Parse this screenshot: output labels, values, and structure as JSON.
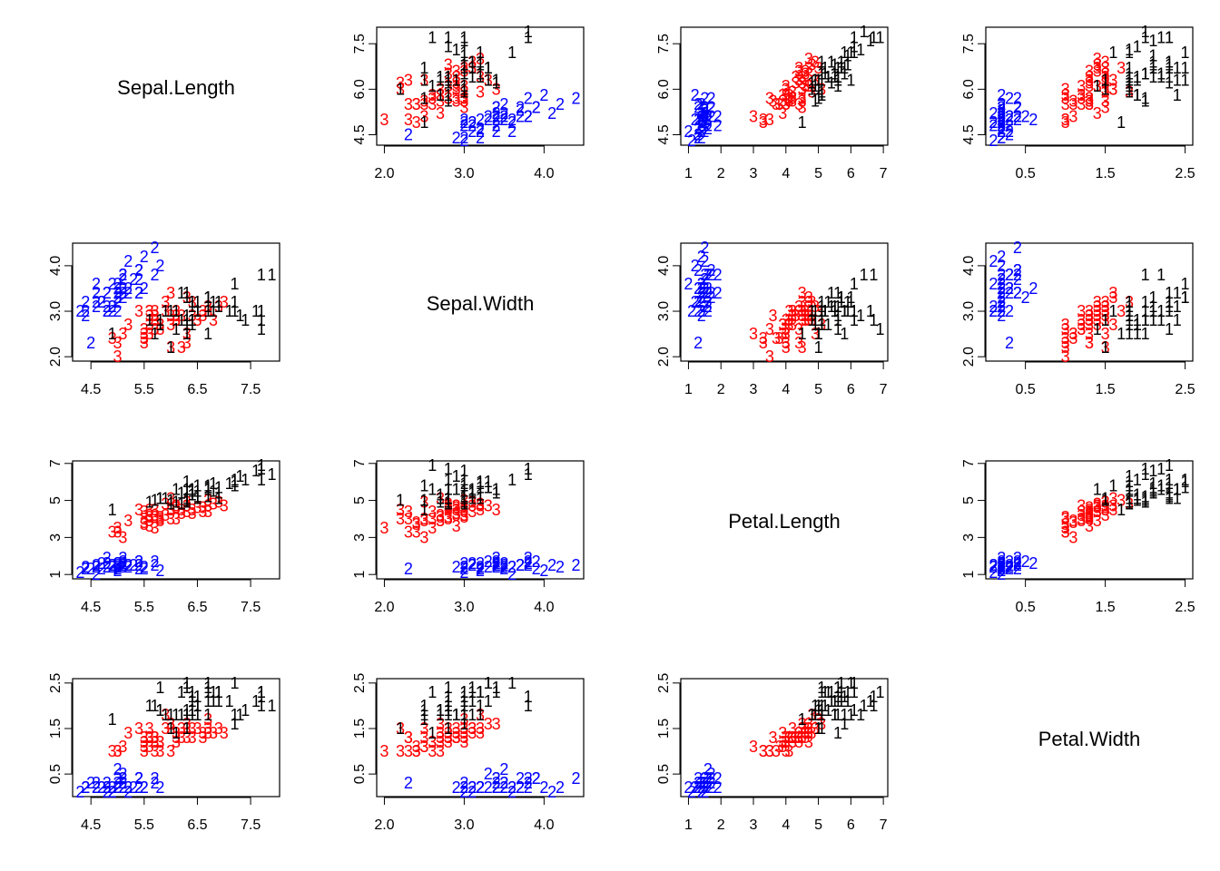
{
  "variables": [
    "Sepal.Length",
    "Sepal.Width",
    "Petal.Length",
    "Petal.Width"
  ],
  "chart_data": {
    "type": "scatter",
    "kind": "scatterplot-matrix",
    "title": "",
    "variables": [
      "Sepal.Length",
      "Sepal.Width",
      "Petal.Length",
      "Petal.Width"
    ],
    "point_labels": [
      "1",
      "2",
      "3"
    ],
    "groups": [
      {
        "label": "1",
        "color": "#000000"
      },
      {
        "label": "2",
        "color": "#0000ff"
      },
      {
        "label": "3",
        "color": "#ff0000"
      }
    ],
    "axes": {
      "Sepal.Length": {
        "range": [
          4.3,
          7.9
        ],
        "ticks": [
          "4.5",
          "5.5",
          "6.5",
          "7.5"
        ],
        "row_ticks": [
          "4.5",
          "6.0",
          "7.5"
        ]
      },
      "Sepal.Width": {
        "range": [
          2.0,
          4.4
        ],
        "ticks": [
          "2.0",
          "3.0",
          "4.0"
        ],
        "row_ticks": [
          "2.0",
          "3.0",
          "4.0"
        ]
      },
      "Petal.Length": {
        "range": [
          1.0,
          6.9
        ],
        "ticks": [
          "1",
          "2",
          "3",
          "4",
          "5",
          "6",
          "7"
        ],
        "row_ticks": [
          "1",
          "3",
          "5",
          "7"
        ]
      },
      "Petal.Width": {
        "range": [
          0.1,
          2.5
        ],
        "ticks": [
          "0.5",
          "1.5",
          "2.5"
        ],
        "row_ticks": [
          "0.5",
          "1.5",
          "2.5"
        ]
      }
    },
    "grid": false,
    "legend": "none",
    "points": [
      {
        "g": 2,
        "v": [
          5.1,
          3.5,
          1.4,
          0.2
        ]
      },
      {
        "g": 2,
        "v": [
          4.9,
          3.0,
          1.4,
          0.2
        ]
      },
      {
        "g": 2,
        "v": [
          4.7,
          3.2,
          1.3,
          0.2
        ]
      },
      {
        "g": 2,
        "v": [
          4.6,
          3.1,
          1.5,
          0.2
        ]
      },
      {
        "g": 2,
        "v": [
          5.0,
          3.6,
          1.4,
          0.2
        ]
      },
      {
        "g": 2,
        "v": [
          5.4,
          3.9,
          1.7,
          0.4
        ]
      },
      {
        "g": 2,
        "v": [
          4.6,
          3.4,
          1.4,
          0.3
        ]
      },
      {
        "g": 2,
        "v": [
          5.0,
          3.4,
          1.5,
          0.2
        ]
      },
      {
        "g": 2,
        "v": [
          4.4,
          2.9,
          1.4,
          0.2
        ]
      },
      {
        "g": 2,
        "v": [
          4.9,
          3.1,
          1.5,
          0.1
        ]
      },
      {
        "g": 2,
        "v": [
          5.4,
          3.7,
          1.5,
          0.2
        ]
      },
      {
        "g": 2,
        "v": [
          4.8,
          3.4,
          1.6,
          0.2
        ]
      },
      {
        "g": 2,
        "v": [
          4.8,
          3.0,
          1.4,
          0.1
        ]
      },
      {
        "g": 2,
        "v": [
          4.3,
          3.0,
          1.1,
          0.1
        ]
      },
      {
        "g": 2,
        "v": [
          5.8,
          4.0,
          1.2,
          0.2
        ]
      },
      {
        "g": 2,
        "v": [
          5.7,
          4.4,
          1.5,
          0.4
        ]
      },
      {
        "g": 2,
        "v": [
          5.4,
          3.9,
          1.3,
          0.4
        ]
      },
      {
        "g": 2,
        "v": [
          5.1,
          3.5,
          1.4,
          0.3
        ]
      },
      {
        "g": 2,
        "v": [
          5.7,
          3.8,
          1.7,
          0.3
        ]
      },
      {
        "g": 2,
        "v": [
          5.1,
          3.8,
          1.5,
          0.3
        ]
      },
      {
        "g": 2,
        "v": [
          5.4,
          3.4,
          1.7,
          0.2
        ]
      },
      {
        "g": 2,
        "v": [
          5.1,
          3.7,
          1.5,
          0.4
        ]
      },
      {
        "g": 2,
        "v": [
          4.6,
          3.6,
          1.0,
          0.2
        ]
      },
      {
        "g": 2,
        "v": [
          5.1,
          3.3,
          1.7,
          0.5
        ]
      },
      {
        "g": 2,
        "v": [
          4.8,
          3.4,
          1.9,
          0.2
        ]
      },
      {
        "g": 2,
        "v": [
          5.0,
          3.0,
          1.6,
          0.2
        ]
      },
      {
        "g": 2,
        "v": [
          5.0,
          3.4,
          1.6,
          0.4
        ]
      },
      {
        "g": 2,
        "v": [
          5.2,
          3.5,
          1.5,
          0.2
        ]
      },
      {
        "g": 2,
        "v": [
          5.2,
          3.4,
          1.4,
          0.2
        ]
      },
      {
        "g": 2,
        "v": [
          4.7,
          3.2,
          1.6,
          0.2
        ]
      },
      {
        "g": 2,
        "v": [
          4.8,
          3.1,
          1.6,
          0.2
        ]
      },
      {
        "g": 2,
        "v": [
          5.4,
          3.4,
          1.5,
          0.4
        ]
      },
      {
        "g": 2,
        "v": [
          5.2,
          4.1,
          1.5,
          0.1
        ]
      },
      {
        "g": 2,
        "v": [
          5.5,
          4.2,
          1.4,
          0.2
        ]
      },
      {
        "g": 2,
        "v": [
          4.9,
          3.1,
          1.5,
          0.2
        ]
      },
      {
        "g": 2,
        "v": [
          5.0,
          3.2,
          1.2,
          0.2
        ]
      },
      {
        "g": 2,
        "v": [
          5.5,
          3.5,
          1.3,
          0.2
        ]
      },
      {
        "g": 2,
        "v": [
          4.9,
          3.6,
          1.4,
          0.1
        ]
      },
      {
        "g": 2,
        "v": [
          4.4,
          3.0,
          1.3,
          0.2
        ]
      },
      {
        "g": 2,
        "v": [
          5.1,
          3.4,
          1.5,
          0.2
        ]
      },
      {
        "g": 2,
        "v": [
          5.0,
          3.5,
          1.3,
          0.3
        ]
      },
      {
        "g": 2,
        "v": [
          4.5,
          2.3,
          1.3,
          0.3
        ]
      },
      {
        "g": 2,
        "v": [
          4.4,
          3.2,
          1.3,
          0.2
        ]
      },
      {
        "g": 2,
        "v": [
          5.0,
          3.5,
          1.6,
          0.6
        ]
      },
      {
        "g": 2,
        "v": [
          5.1,
          3.8,
          1.9,
          0.4
        ]
      },
      {
        "g": 2,
        "v": [
          4.8,
          3.0,
          1.4,
          0.3
        ]
      },
      {
        "g": 2,
        "v": [
          5.1,
          3.8,
          1.6,
          0.2
        ]
      },
      {
        "g": 2,
        "v": [
          4.6,
          3.2,
          1.4,
          0.2
        ]
      },
      {
        "g": 2,
        "v": [
          5.3,
          3.7,
          1.5,
          0.2
        ]
      },
      {
        "g": 2,
        "v": [
          5.0,
          3.3,
          1.4,
          0.2
        ]
      },
      {
        "g": 3,
        "v": [
          7.0,
          3.2,
          4.7,
          1.4
        ]
      },
      {
        "g": 3,
        "v": [
          6.4,
          3.2,
          4.5,
          1.5
        ]
      },
      {
        "g": 3,
        "v": [
          6.9,
          3.1,
          4.9,
          1.5
        ]
      },
      {
        "g": 3,
        "v": [
          5.5,
          2.3,
          4.0,
          1.3
        ]
      },
      {
        "g": 3,
        "v": [
          6.5,
          2.8,
          4.6,
          1.5
        ]
      },
      {
        "g": 3,
        "v": [
          5.7,
          2.8,
          4.5,
          1.3
        ]
      },
      {
        "g": 3,
        "v": [
          6.3,
          3.3,
          4.7,
          1.6
        ]
      },
      {
        "g": 3,
        "v": [
          4.9,
          2.4,
          3.3,
          1.0
        ]
      },
      {
        "g": 3,
        "v": [
          6.6,
          2.9,
          4.6,
          1.3
        ]
      },
      {
        "g": 3,
        "v": [
          5.2,
          2.7,
          3.9,
          1.4
        ]
      },
      {
        "g": 3,
        "v": [
          5.0,
          2.0,
          3.5,
          1.0
        ]
      },
      {
        "g": 3,
        "v": [
          5.9,
          3.0,
          4.2,
          1.5
        ]
      },
      {
        "g": 3,
        "v": [
          6.0,
          2.2,
          4.0,
          1.0
        ]
      },
      {
        "g": 3,
        "v": [
          6.1,
          2.9,
          4.7,
          1.4
        ]
      },
      {
        "g": 3,
        "v": [
          5.6,
          2.9,
          3.6,
          1.3
        ]
      },
      {
        "g": 3,
        "v": [
          6.7,
          3.1,
          4.4,
          1.4
        ]
      },
      {
        "g": 3,
        "v": [
          5.6,
          3.0,
          4.5,
          1.5
        ]
      },
      {
        "g": 3,
        "v": [
          5.8,
          2.7,
          4.1,
          1.0
        ]
      },
      {
        "g": 3,
        "v": [
          6.2,
          2.2,
          4.5,
          1.5
        ]
      },
      {
        "g": 3,
        "v": [
          5.6,
          2.5,
          3.9,
          1.1
        ]
      },
      {
        "g": 3,
        "v": [
          5.9,
          3.2,
          4.8,
          1.8
        ]
      },
      {
        "g": 3,
        "v": [
          6.1,
          2.8,
          4.0,
          1.3
        ]
      },
      {
        "g": 3,
        "v": [
          6.3,
          2.5,
          4.9,
          1.5
        ]
      },
      {
        "g": 3,
        "v": [
          6.1,
          2.8,
          4.7,
          1.2
        ]
      },
      {
        "g": 3,
        "v": [
          6.4,
          2.9,
          4.3,
          1.3
        ]
      },
      {
        "g": 3,
        "v": [
          6.6,
          3.0,
          4.4,
          1.4
        ]
      },
      {
        "g": 3,
        "v": [
          6.8,
          2.8,
          4.8,
          1.4
        ]
      },
      {
        "g": 3,
        "v": [
          6.7,
          3.0,
          5.0,
          1.7
        ]
      },
      {
        "g": 3,
        "v": [
          6.0,
          2.9,
          4.5,
          1.5
        ]
      },
      {
        "g": 3,
        "v": [
          5.7,
          2.6,
          3.5,
          1.0
        ]
      },
      {
        "g": 3,
        "v": [
          5.5,
          2.4,
          3.8,
          1.1
        ]
      },
      {
        "g": 3,
        "v": [
          5.5,
          2.4,
          3.7,
          1.0
        ]
      },
      {
        "g": 3,
        "v": [
          5.8,
          2.7,
          3.9,
          1.2
        ]
      },
      {
        "g": 3,
        "v": [
          6.0,
          2.7,
          5.1,
          1.6
        ]
      },
      {
        "g": 3,
        "v": [
          5.4,
          3.0,
          4.5,
          1.5
        ]
      },
      {
        "g": 3,
        "v": [
          6.0,
          3.4,
          4.5,
          1.6
        ]
      },
      {
        "g": 3,
        "v": [
          6.7,
          3.1,
          4.7,
          1.5
        ]
      },
      {
        "g": 3,
        "v": [
          6.3,
          2.3,
          4.4,
          1.3
        ]
      },
      {
        "g": 3,
        "v": [
          5.6,
          3.0,
          4.1,
          1.3
        ]
      },
      {
        "g": 3,
        "v": [
          5.5,
          2.5,
          4.0,
          1.3
        ]
      },
      {
        "g": 3,
        "v": [
          5.5,
          2.6,
          4.4,
          1.2
        ]
      },
      {
        "g": 3,
        "v": [
          6.1,
          3.0,
          4.6,
          1.4
        ]
      },
      {
        "g": 3,
        "v": [
          5.8,
          2.6,
          4.0,
          1.2
        ]
      },
      {
        "g": 3,
        "v": [
          5.0,
          2.3,
          3.3,
          1.0
        ]
      },
      {
        "g": 3,
        "v": [
          5.6,
          2.7,
          4.2,
          1.3
        ]
      },
      {
        "g": 3,
        "v": [
          5.7,
          3.0,
          4.2,
          1.2
        ]
      },
      {
        "g": 3,
        "v": [
          5.7,
          2.9,
          4.2,
          1.3
        ]
      },
      {
        "g": 3,
        "v": [
          6.2,
          2.9,
          4.3,
          1.3
        ]
      },
      {
        "g": 3,
        "v": [
          5.1,
          2.5,
          3.0,
          1.1
        ]
      },
      {
        "g": 3,
        "v": [
          5.7,
          2.8,
          4.1,
          1.3
        ]
      },
      {
        "g": 1,
        "v": [
          6.3,
          3.3,
          6.0,
          2.5
        ]
      },
      {
        "g": 1,
        "v": [
          5.8,
          2.7,
          5.1,
          1.9
        ]
      },
      {
        "g": 1,
        "v": [
          7.1,
          3.0,
          5.9,
          2.1
        ]
      },
      {
        "g": 1,
        "v": [
          6.3,
          2.9,
          5.6,
          1.8
        ]
      },
      {
        "g": 1,
        "v": [
          6.5,
          3.0,
          5.8,
          2.2
        ]
      },
      {
        "g": 1,
        "v": [
          7.6,
          3.0,
          6.6,
          2.1
        ]
      },
      {
        "g": 1,
        "v": [
          4.9,
          2.5,
          4.5,
          1.7
        ]
      },
      {
        "g": 1,
        "v": [
          7.3,
          2.9,
          6.3,
          1.8
        ]
      },
      {
        "g": 1,
        "v": [
          6.7,
          2.5,
          5.8,
          1.8
        ]
      },
      {
        "g": 1,
        "v": [
          7.2,
          3.6,
          6.1,
          2.5
        ]
      },
      {
        "g": 1,
        "v": [
          6.5,
          3.2,
          5.1,
          2.0
        ]
      },
      {
        "g": 1,
        "v": [
          6.4,
          2.7,
          5.3,
          1.9
        ]
      },
      {
        "g": 1,
        "v": [
          6.8,
          3.0,
          5.5,
          2.1
        ]
      },
      {
        "g": 1,
        "v": [
          5.7,
          2.5,
          5.0,
          2.0
        ]
      },
      {
        "g": 1,
        "v": [
          5.8,
          2.8,
          5.1,
          2.4
        ]
      },
      {
        "g": 1,
        "v": [
          6.4,
          3.2,
          5.3,
          2.3
        ]
      },
      {
        "g": 1,
        "v": [
          6.5,
          3.0,
          5.5,
          1.8
        ]
      },
      {
        "g": 1,
        "v": [
          7.7,
          3.8,
          6.7,
          2.2
        ]
      },
      {
        "g": 1,
        "v": [
          7.7,
          2.6,
          6.9,
          2.3
        ]
      },
      {
        "g": 1,
        "v": [
          6.0,
          2.2,
          5.0,
          1.5
        ]
      },
      {
        "g": 1,
        "v": [
          6.9,
          3.2,
          5.7,
          2.3
        ]
      },
      {
        "g": 1,
        "v": [
          5.6,
          2.8,
          4.9,
          2.0
        ]
      },
      {
        "g": 1,
        "v": [
          7.7,
          2.8,
          6.7,
          2.0
        ]
      },
      {
        "g": 1,
        "v": [
          6.3,
          2.7,
          4.9,
          1.8
        ]
      },
      {
        "g": 1,
        "v": [
          6.7,
          3.3,
          5.7,
          2.1
        ]
      },
      {
        "g": 1,
        "v": [
          7.2,
          3.2,
          6.0,
          1.8
        ]
      },
      {
        "g": 1,
        "v": [
          6.2,
          2.8,
          4.8,
          1.8
        ]
      },
      {
        "g": 1,
        "v": [
          6.1,
          3.0,
          4.9,
          1.8
        ]
      },
      {
        "g": 1,
        "v": [
          6.4,
          2.8,
          5.6,
          2.1
        ]
      },
      {
        "g": 1,
        "v": [
          7.2,
          3.0,
          5.8,
          1.6
        ]
      },
      {
        "g": 1,
        "v": [
          7.4,
          2.8,
          6.1,
          1.9
        ]
      },
      {
        "g": 1,
        "v": [
          7.9,
          3.8,
          6.4,
          2.0
        ]
      },
      {
        "g": 1,
        "v": [
          6.4,
          2.8,
          5.6,
          2.2
        ]
      },
      {
        "g": 1,
        "v": [
          6.3,
          2.8,
          5.1,
          1.5
        ]
      },
      {
        "g": 1,
        "v": [
          6.1,
          2.6,
          5.6,
          1.4
        ]
      },
      {
        "g": 1,
        "v": [
          7.7,
          3.0,
          6.1,
          2.3
        ]
      },
      {
        "g": 1,
        "v": [
          6.3,
          3.4,
          5.6,
          2.4
        ]
      },
      {
        "g": 1,
        "v": [
          6.4,
          3.1,
          5.5,
          1.8
        ]
      },
      {
        "g": 1,
        "v": [
          6.0,
          3.0,
          4.8,
          1.8
        ]
      },
      {
        "g": 1,
        "v": [
          6.9,
          3.1,
          5.4,
          2.1
        ]
      },
      {
        "g": 1,
        "v": [
          6.7,
          3.1,
          5.6,
          2.4
        ]
      },
      {
        "g": 1,
        "v": [
          6.9,
          3.1,
          5.1,
          2.3
        ]
      },
      {
        "g": 1,
        "v": [
          5.8,
          2.7,
          5.1,
          1.9
        ]
      },
      {
        "g": 1,
        "v": [
          6.8,
          3.2,
          5.9,
          2.3
        ]
      },
      {
        "g": 1,
        "v": [
          6.7,
          3.3,
          5.7,
          2.5
        ]
      },
      {
        "g": 1,
        "v": [
          6.7,
          3.0,
          5.2,
          2.3
        ]
      },
      {
        "g": 1,
        "v": [
          6.3,
          2.5,
          5.0,
          1.9
        ]
      },
      {
        "g": 1,
        "v": [
          6.5,
          3.0,
          5.2,
          2.0
        ]
      },
      {
        "g": 1,
        "v": [
          6.2,
          3.4,
          5.4,
          2.3
        ]
      },
      {
        "g": 1,
        "v": [
          5.9,
          3.0,
          5.1,
          1.8
        ]
      }
    ]
  }
}
